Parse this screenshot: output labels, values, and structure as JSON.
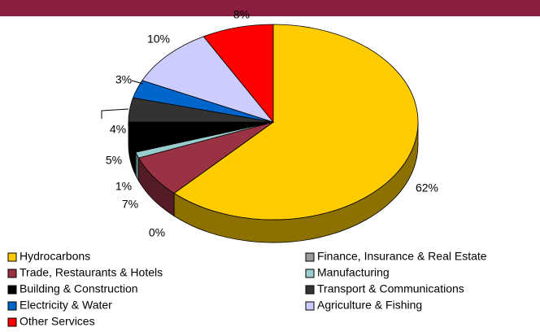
{
  "chart_data": {
    "type": "pie",
    "categories": [
      "Hydrocarbons",
      "Finance, Insurance & Real Estate",
      "Trade, Restaurants & Hotels",
      "Manufacturing",
      "Building & Construction",
      "Transport & Communications",
      "Electricity & Water",
      "Agriculture & Fishing",
      "Other Services"
    ],
    "values": [
      62,
      0,
      7,
      1,
      5,
      4,
      3,
      10,
      8
    ],
    "value_labels": [
      "62%",
      "0%",
      "7%",
      "1%",
      "5%",
      "4%",
      "3%",
      "10%",
      "8%"
    ],
    "colors": [
      "#ffcc00",
      "#999999",
      "#993344",
      "#99cccc",
      "#000000",
      "#333333",
      "#0066cc",
      "#ccccff",
      "#ff0000"
    ]
  }
}
